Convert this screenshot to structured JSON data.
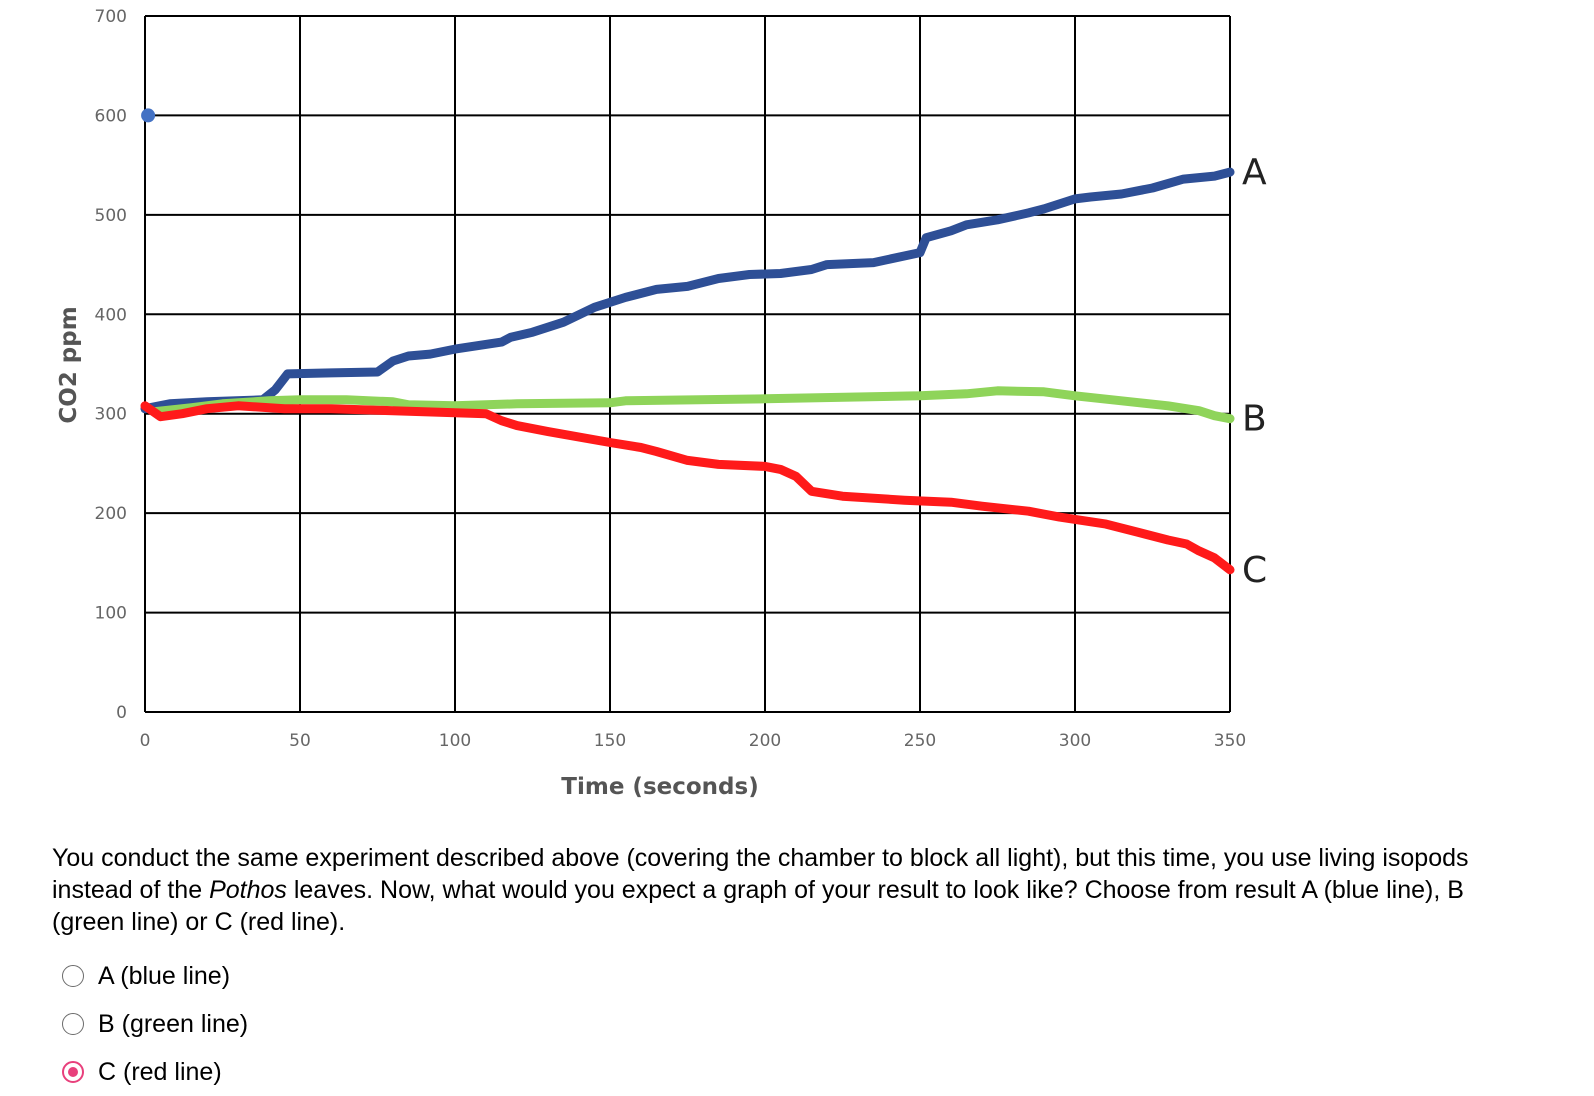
{
  "chart_data": {
    "type": "line",
    "xlabel": "Time (seconds)",
    "ylabel": "CO2 ppm",
    "xlim": [
      0,
      350
    ],
    "ylim": [
      0,
      700
    ],
    "xticks": [
      0,
      50,
      100,
      150,
      200,
      250,
      300,
      350
    ],
    "yticks": [
      0,
      100,
      200,
      300,
      400,
      500,
      600,
      700
    ],
    "grid": true,
    "highlight_point": {
      "x": 1,
      "y": 600,
      "color": "#4472c4"
    },
    "series": [
      {
        "name": "A",
        "color": "#2e4f96",
        "points": [
          [
            0,
            305
          ],
          [
            8,
            310
          ],
          [
            20,
            312
          ],
          [
            38,
            314
          ],
          [
            42,
            324
          ],
          [
            46,
            340
          ],
          [
            60,
            341
          ],
          [
            75,
            342
          ],
          [
            80,
            353
          ],
          [
            85,
            358
          ],
          [
            92,
            360
          ],
          [
            100,
            365
          ],
          [
            115,
            372
          ],
          [
            118,
            377
          ],
          [
            125,
            382
          ],
          [
            135,
            392
          ],
          [
            145,
            407
          ],
          [
            155,
            417
          ],
          [
            165,
            425
          ],
          [
            175,
            428
          ],
          [
            185,
            436
          ],
          [
            195,
            440
          ],
          [
            205,
            441
          ],
          [
            215,
            445
          ],
          [
            220,
            450
          ],
          [
            235,
            452
          ],
          [
            250,
            462
          ],
          [
            252,
            477
          ],
          [
            260,
            484
          ],
          [
            265,
            490
          ],
          [
            275,
            495
          ],
          [
            285,
            502
          ],
          [
            290,
            506
          ],
          [
            300,
            516
          ],
          [
            305,
            518
          ],
          [
            315,
            521
          ],
          [
            325,
            527
          ],
          [
            335,
            536
          ],
          [
            345,
            539
          ],
          [
            350,
            543
          ]
        ]
      },
      {
        "name": "B",
        "color": "#8fd45a",
        "points": [
          [
            3,
            302
          ],
          [
            15,
            306
          ],
          [
            25,
            310
          ],
          [
            40,
            313
          ],
          [
            50,
            314
          ],
          [
            65,
            314
          ],
          [
            80,
            312
          ],
          [
            85,
            309
          ],
          [
            100,
            308
          ],
          [
            120,
            310
          ],
          [
            150,
            311
          ],
          [
            155,
            313
          ],
          [
            200,
            315
          ],
          [
            250,
            318
          ],
          [
            265,
            320
          ],
          [
            275,
            323
          ],
          [
            290,
            322
          ],
          [
            300,
            318
          ],
          [
            315,
            313
          ],
          [
            330,
            308
          ],
          [
            340,
            303
          ],
          [
            345,
            298
          ],
          [
            350,
            295
          ]
        ]
      },
      {
        "name": "C",
        "color": "#ff1a1a",
        "points": [
          [
            0,
            308
          ],
          [
            5,
            297
          ],
          [
            12,
            300
          ],
          [
            20,
            305
          ],
          [
            30,
            308
          ],
          [
            45,
            305
          ],
          [
            60,
            305
          ],
          [
            80,
            303
          ],
          [
            100,
            301
          ],
          [
            110,
            300
          ],
          [
            115,
            293
          ],
          [
            120,
            288
          ],
          [
            130,
            282
          ],
          [
            150,
            271
          ],
          [
            160,
            266
          ],
          [
            165,
            262
          ],
          [
            175,
            253
          ],
          [
            185,
            249
          ],
          [
            200,
            247
          ],
          [
            205,
            244
          ],
          [
            210,
            237
          ],
          [
            215,
            222
          ],
          [
            225,
            217
          ],
          [
            245,
            213
          ],
          [
            260,
            211
          ],
          [
            270,
            207
          ],
          [
            285,
            202
          ],
          [
            295,
            196
          ],
          [
            310,
            189
          ],
          [
            320,
            181
          ],
          [
            330,
            173
          ],
          [
            336,
            169
          ],
          [
            340,
            162
          ],
          [
            345,
            155
          ],
          [
            350,
            143
          ]
        ]
      }
    ],
    "line_labels": [
      "A",
      "B",
      "C"
    ]
  },
  "question": {
    "text_before": "You conduct the same experiment described above (covering the chamber to block all light), but this time, you use living isopods instead of the ",
    "italic": "Pothos",
    "text_after": " leaves. Now, what would you expect a graph of your result to look like? Choose from result A (blue line), B (green line) or C (red line)."
  },
  "options": [
    {
      "label": "A (blue line)",
      "selected": false
    },
    {
      "label": "B (green line)",
      "selected": false
    },
    {
      "label": "C (red line)",
      "selected": true
    }
  ],
  "colors": {
    "radio_selected": "#e8407c",
    "grid": "#000000"
  }
}
